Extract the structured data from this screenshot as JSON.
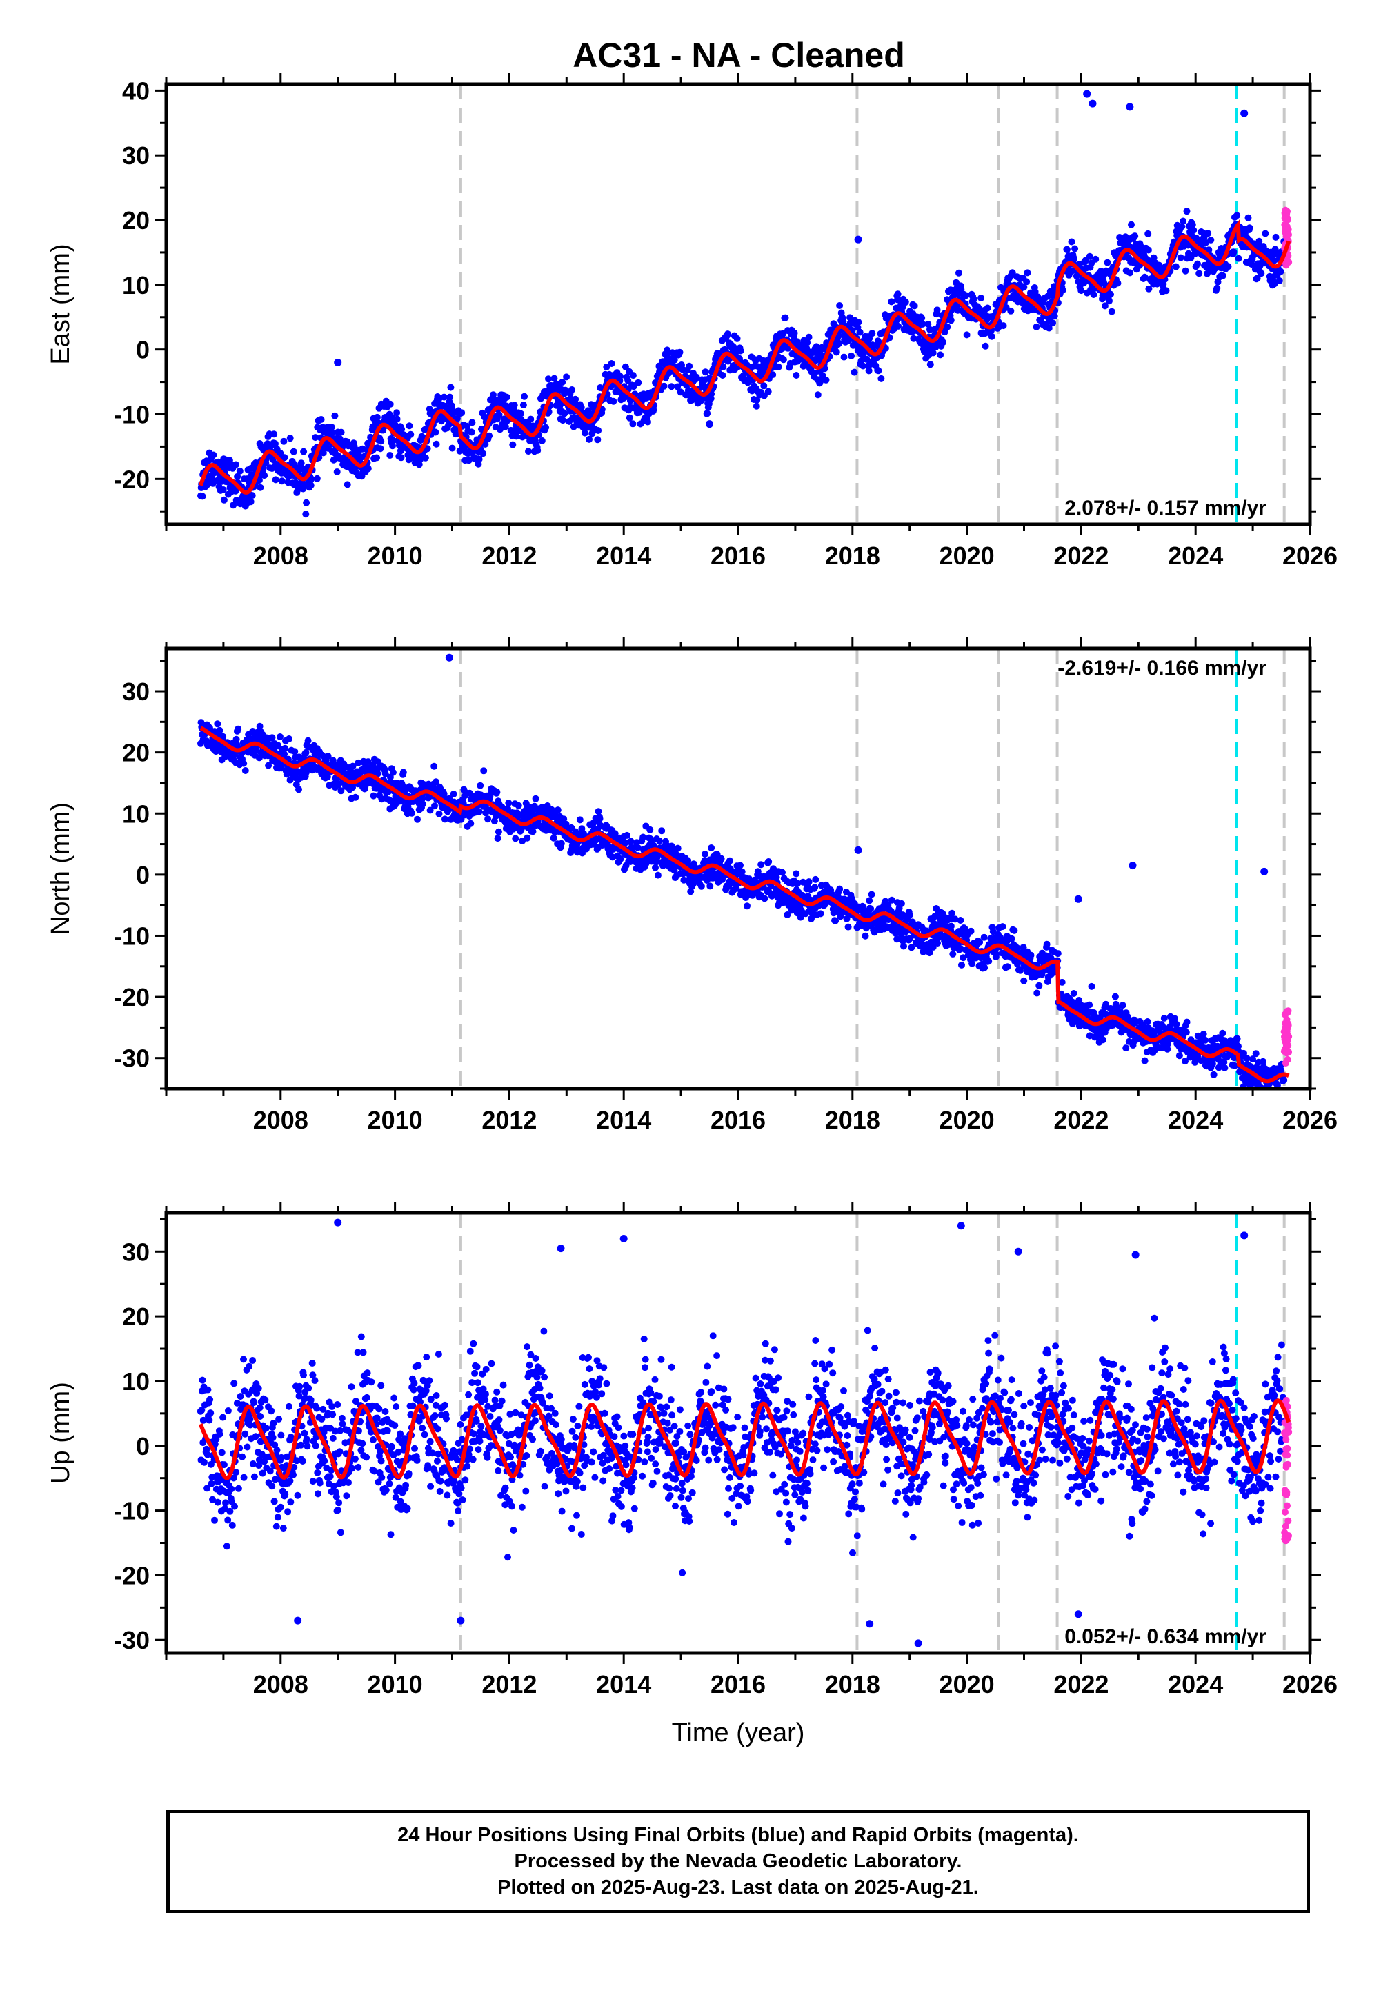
{
  "title": "AC31  - NA - Cleaned",
  "caption": {
    "line1": "24 Hour Positions Using Final Orbits (blue) and Rapid Orbits (magenta).",
    "line2": "Processed by the Nevada Geodetic Laboratory.",
    "line3": "Plotted on 2025-Aug-23. Last data on 2025-Aug-21."
  },
  "colors": {
    "final_orbits": "#0000ff",
    "rapid_orbits": "#ff33cc",
    "model_fit": "#ff0000",
    "equipment_change": "#c8c8c8",
    "earthquake": "#00e5ee"
  },
  "chart_data": [
    {
      "type": "scatter",
      "id": "east",
      "title": "AC31  - NA - Cleaned",
      "xlabel": "",
      "ylabel": "East (mm)",
      "xlim": [
        2006.0,
        2026.0
      ],
      "ylim": [
        -27,
        41
      ],
      "x_ticks": [
        2008,
        2010,
        2012,
        2014,
        2016,
        2018,
        2020,
        2022,
        2024,
        2026
      ],
      "y_ticks": [
        -20,
        -10,
        0,
        10,
        20,
        30,
        40
      ],
      "rate_text": "2.078+/- 0.157 mm/yr",
      "rate_position": "bottom-right",
      "trend": {
        "start": 2006.6,
        "end": 2025.63,
        "value_at_start": -21.0,
        "rate": 2.078
      },
      "seasonal": {
        "amplitude": 2.5,
        "phase": 0.6
      },
      "steps": [
        {
          "epoch": 2011.15,
          "offset": -1.5
        },
        {
          "epoch": 2021.6,
          "offset": 1.5
        },
        {
          "epoch": 2024.75,
          "offset": -2.5
        }
      ],
      "scatter": 1.6,
      "outliers": [
        [
          2022.1,
          39.5
        ],
        [
          2022.2,
          38.0
        ],
        [
          2022.85,
          37.5
        ],
        [
          2024.85,
          36.5
        ],
        [
          2018.1,
          17.0
        ],
        [
          2009.0,
          -2.0
        ],
        [
          2015.5,
          -11.5
        ]
      ],
      "rapid": {
        "start": 2025.55,
        "end": 2025.63,
        "range": [
          13,
          22
        ]
      }
    },
    {
      "type": "scatter",
      "id": "north",
      "title": "",
      "xlabel": "",
      "ylabel": "North (mm)",
      "xlim": [
        2006.0,
        2026.0
      ],
      "ylim": [
        -35,
        37
      ],
      "x_ticks": [
        2008,
        2010,
        2012,
        2014,
        2016,
        2018,
        2020,
        2022,
        2024,
        2026
      ],
      "y_ticks": [
        -30,
        -20,
        -10,
        0,
        10,
        20,
        30
      ],
      "rate_text": "-2.619+/- 0.166 mm/yr",
      "rate_position": "top-right",
      "trend": {
        "start": 2006.6,
        "end": 2025.63,
        "value_at_start": 23.0,
        "rate": -2.619
      },
      "seasonal": {
        "amplitude": 0.9,
        "phase": 0.4
      },
      "steps": [
        {
          "epoch": 2011.15,
          "offset": 1.0
        },
        {
          "epoch": 2021.6,
          "offset": -6.5
        },
        {
          "epoch": 2024.75,
          "offset": -1.5
        }
      ],
      "scatter": 1.4,
      "outliers": [
        [
          2010.95,
          35.5
        ],
        [
          2018.1,
          4.0
        ],
        [
          2022.9,
          1.5
        ],
        [
          2025.2,
          0.5
        ],
        [
          2021.95,
          -4.0
        ]
      ],
      "rapid": {
        "start": 2025.55,
        "end": 2025.63,
        "range": [
          -31,
          -22
        ]
      }
    },
    {
      "type": "scatter",
      "id": "up",
      "title": "",
      "xlabel": "Time (year)",
      "ylabel": "Up (mm)",
      "xlim": [
        2006.0,
        2026.0
      ],
      "ylim": [
        -32,
        36
      ],
      "x_ticks": [
        2008,
        2010,
        2012,
        2014,
        2016,
        2018,
        2020,
        2022,
        2024,
        2026
      ],
      "y_ticks": [
        -30,
        -20,
        -10,
        0,
        10,
        20,
        30
      ],
      "rate_text": "0.052+/- 0.634 mm/yr",
      "rate_position": "bottom-right",
      "trend": {
        "start": 2006.6,
        "end": 2025.63,
        "value_at_start": 0.5,
        "rate": 0.052
      },
      "seasonal": {
        "amplitude": 5.0,
        "phase": 0.25
      },
      "steps": [],
      "scatter": 4.5,
      "outliers": [
        [
          2009.0,
          34.5
        ],
        [
          2019.9,
          34.0
        ],
        [
          2024.85,
          32.5
        ],
        [
          2014.0,
          32.0
        ],
        [
          2012.9,
          30.5
        ],
        [
          2020.9,
          30.0
        ],
        [
          2022.95,
          29.5
        ],
        [
          2008.3,
          -27.0
        ],
        [
          2011.15,
          -27.0
        ],
        [
          2018.3,
          -27.5
        ],
        [
          2019.15,
          -30.5
        ],
        [
          2021.95,
          -26.0
        ]
      ],
      "rapid": {
        "start": 2025.55,
        "end": 2025.63,
        "range": [
          -15,
          8
        ]
      }
    }
  ],
  "vertical_markers": {
    "equipment_changes": [
      2011.15,
      2018.08,
      2020.55,
      2021.58,
      2025.55
    ],
    "earthquake": [
      2024.72
    ]
  }
}
